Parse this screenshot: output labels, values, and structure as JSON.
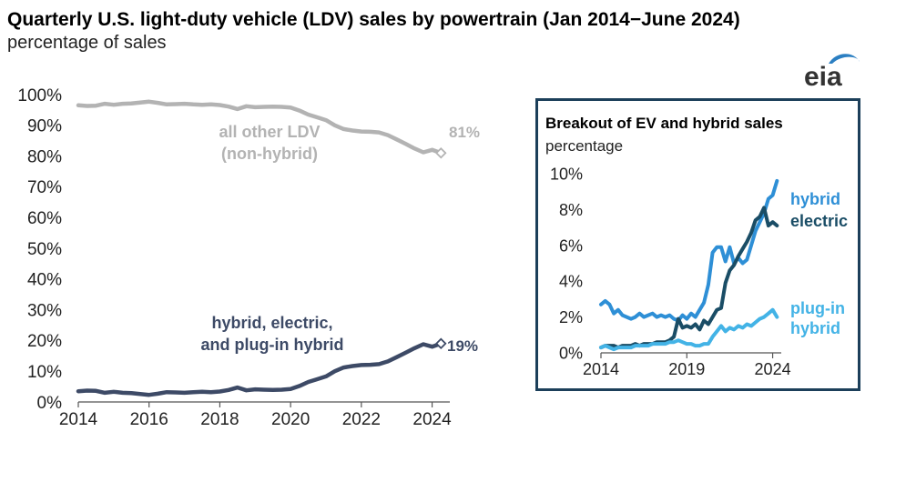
{
  "header": {
    "title": "Quarterly U.S. light-duty vehicle (LDV) sales by powertrain (Jan 2014−June 2024)",
    "subtitle": "percentage of sales",
    "logo_text": "eia"
  },
  "chart_data": [
    {
      "type": "line",
      "title": "Quarterly U.S. light-duty vehicle (LDV) sales by powertrain (Jan 2014−June 2024)",
      "ylabel": "percentage of sales",
      "xlim": [
        2014,
        2024.5
      ],
      "ylim": [
        0,
        100
      ],
      "x_ticks": [
        2014,
        2016,
        2018,
        2020,
        2022,
        2024
      ],
      "y_ticks": [
        0,
        10,
        20,
        30,
        40,
        50,
        60,
        70,
        80,
        90,
        100
      ],
      "y_tick_labels": [
        "0%",
        "10%",
        "20%",
        "30%",
        "40%",
        "50%",
        "60%",
        "70%",
        "80%",
        "90%",
        "100%"
      ],
      "grid": false,
      "series": [
        {
          "name": "all other LDV (non-hybrid)",
          "label_lines": [
            "all other LDV",
            "(non-hybrid)"
          ],
          "end_label": "81%",
          "color": "#b3b3b3",
          "x": [
            2014.0,
            2014.25,
            2014.5,
            2014.75,
            2015.0,
            2015.25,
            2015.5,
            2015.75,
            2016.0,
            2016.25,
            2016.5,
            2016.75,
            2017.0,
            2017.25,
            2017.5,
            2017.75,
            2018.0,
            2018.25,
            2018.5,
            2018.75,
            2019.0,
            2019.25,
            2019.5,
            2019.75,
            2020.0,
            2020.25,
            2020.5,
            2020.75,
            2021.0,
            2021.25,
            2021.5,
            2021.75,
            2022.0,
            2022.25,
            2022.5,
            2022.75,
            2023.0,
            2023.25,
            2023.5,
            2023.75,
            2024.0,
            2024.25
          ],
          "y": [
            96.5,
            96.3,
            96.4,
            97.0,
            96.7,
            97.0,
            97.1,
            97.4,
            97.7,
            97.3,
            96.8,
            96.9,
            97.0,
            96.8,
            96.7,
            96.8,
            96.6,
            96.1,
            95.3,
            96.2,
            95.9,
            96.0,
            96.1,
            96.0,
            95.8,
            94.8,
            93.5,
            92.6,
            91.7,
            90.0,
            88.8,
            88.3,
            88.0,
            87.9,
            87.7,
            86.8,
            85.4,
            84.0,
            82.5,
            81.2,
            82.0,
            81.0
          ]
        },
        {
          "name": "hybrid, electric, and plug-in hybrid",
          "label_lines": [
            "hybrid, electric,",
            "and plug-in hybrid"
          ],
          "end_label": "19%",
          "color": "#3d4a66",
          "x": [
            2014.0,
            2014.25,
            2014.5,
            2014.75,
            2015.0,
            2015.25,
            2015.5,
            2015.75,
            2016.0,
            2016.25,
            2016.5,
            2016.75,
            2017.0,
            2017.25,
            2017.5,
            2017.75,
            2018.0,
            2018.25,
            2018.5,
            2018.75,
            2019.0,
            2019.25,
            2019.5,
            2019.75,
            2020.0,
            2020.25,
            2020.5,
            2020.75,
            2021.0,
            2021.25,
            2021.5,
            2021.75,
            2022.0,
            2022.25,
            2022.5,
            2022.75,
            2023.0,
            2023.25,
            2023.5,
            2023.75,
            2024.0,
            2024.25
          ],
          "y": [
            3.5,
            3.7,
            3.6,
            3.0,
            3.3,
            3.0,
            2.9,
            2.6,
            2.3,
            2.7,
            3.2,
            3.1,
            3.0,
            3.2,
            3.3,
            3.2,
            3.4,
            3.9,
            4.7,
            3.8,
            4.1,
            4.0,
            3.9,
            4.0,
            4.2,
            5.2,
            6.5,
            7.4,
            8.3,
            10.0,
            11.2,
            11.7,
            12.0,
            12.1,
            12.3,
            13.2,
            14.6,
            16.0,
            17.5,
            18.8,
            18.0,
            19.0
          ]
        }
      ]
    },
    {
      "type": "line",
      "title": "Breakout of EV and hybrid sales",
      "ylabel": "percentage",
      "xlim": [
        2014,
        2024.5
      ],
      "ylim": [
        0,
        10
      ],
      "x_ticks": [
        2014,
        2019,
        2024
      ],
      "y_ticks": [
        0,
        2,
        4,
        6,
        8,
        10
      ],
      "y_tick_labels": [
        "0%",
        "2%",
        "4%",
        "6%",
        "8%",
        "10%"
      ],
      "grid": false,
      "series": [
        {
          "name": "hybrid",
          "label_lines": [
            "hybrid"
          ],
          "color": "#2e8fd6",
          "x": [
            2014.0,
            2014.25,
            2014.5,
            2014.75,
            2015.0,
            2015.25,
            2015.5,
            2015.75,
            2016.0,
            2016.25,
            2016.5,
            2016.75,
            2017.0,
            2017.25,
            2017.5,
            2017.75,
            2018.0,
            2018.25,
            2018.5,
            2018.75,
            2019.0,
            2019.25,
            2019.5,
            2019.75,
            2020.0,
            2020.25,
            2020.5,
            2020.75,
            2021.0,
            2021.25,
            2021.5,
            2021.75,
            2022.0,
            2022.25,
            2022.5,
            2022.75,
            2023.0,
            2023.25,
            2023.5,
            2023.75,
            2024.0,
            2024.25
          ],
          "y": [
            2.7,
            2.9,
            2.7,
            2.2,
            2.4,
            2.1,
            2.0,
            1.9,
            2.0,
            2.2,
            2.0,
            2.1,
            2.2,
            2.0,
            2.1,
            2.0,
            2.1,
            1.9,
            1.8,
            2.1,
            1.9,
            2.2,
            2.0,
            2.4,
            2.8,
            3.8,
            5.6,
            5.9,
            5.9,
            5.1,
            5.9,
            5.0,
            5.3,
            5.0,
            5.2,
            6.0,
            6.8,
            7.3,
            7.8,
            8.6,
            8.8,
            9.6
          ]
        },
        {
          "name": "electric",
          "label_lines": [
            "electric"
          ],
          "color": "#1a4d66",
          "x": [
            2014.0,
            2014.25,
            2014.5,
            2014.75,
            2015.0,
            2015.25,
            2015.5,
            2015.75,
            2016.0,
            2016.25,
            2016.5,
            2016.75,
            2017.0,
            2017.25,
            2017.5,
            2017.75,
            2018.0,
            2018.25,
            2018.5,
            2018.75,
            2019.0,
            2019.25,
            2019.5,
            2019.75,
            2020.0,
            2020.25,
            2020.5,
            2020.75,
            2021.0,
            2021.25,
            2021.5,
            2021.75,
            2022.0,
            2022.25,
            2022.5,
            2022.75,
            2023.0,
            2023.25,
            2023.5,
            2023.75,
            2024.0,
            2024.25
          ],
          "y": [
            0.3,
            0.4,
            0.4,
            0.4,
            0.3,
            0.4,
            0.4,
            0.4,
            0.5,
            0.4,
            0.5,
            0.5,
            0.5,
            0.6,
            0.6,
            0.6,
            0.7,
            0.9,
            1.9,
            1.4,
            1.5,
            1.4,
            1.6,
            1.3,
            1.8,
            1.6,
            2.0,
            2.4,
            2.5,
            3.9,
            4.6,
            4.9,
            5.4,
            5.8,
            6.2,
            6.7,
            7.4,
            7.6,
            8.1,
            7.1,
            7.3,
            7.1
          ]
        },
        {
          "name": "plug-in hybrid",
          "label_lines": [
            "plug-in",
            "hybrid"
          ],
          "color": "#43b3e6",
          "x": [
            2014.0,
            2014.25,
            2014.5,
            2014.75,
            2015.0,
            2015.25,
            2015.5,
            2015.75,
            2016.0,
            2016.25,
            2016.5,
            2016.75,
            2017.0,
            2017.25,
            2017.5,
            2017.75,
            2018.0,
            2018.25,
            2018.5,
            2018.75,
            2019.0,
            2019.25,
            2019.5,
            2019.75,
            2020.0,
            2020.25,
            2020.5,
            2020.75,
            2021.0,
            2021.25,
            2021.5,
            2021.75,
            2022.0,
            2022.25,
            2022.5,
            2022.75,
            2023.0,
            2023.25,
            2023.5,
            2023.75,
            2024.0,
            2024.25
          ],
          "y": [
            0.3,
            0.4,
            0.3,
            0.2,
            0.3,
            0.3,
            0.3,
            0.3,
            0.4,
            0.4,
            0.4,
            0.4,
            0.5,
            0.5,
            0.5,
            0.5,
            0.6,
            0.6,
            0.7,
            0.6,
            0.5,
            0.5,
            0.4,
            0.4,
            0.5,
            0.5,
            0.9,
            1.2,
            1.5,
            1.2,
            1.4,
            1.3,
            1.5,
            1.4,
            1.6,
            1.5,
            1.7,
            1.9,
            2.0,
            2.2,
            2.4,
            2.0
          ]
        }
      ]
    }
  ]
}
